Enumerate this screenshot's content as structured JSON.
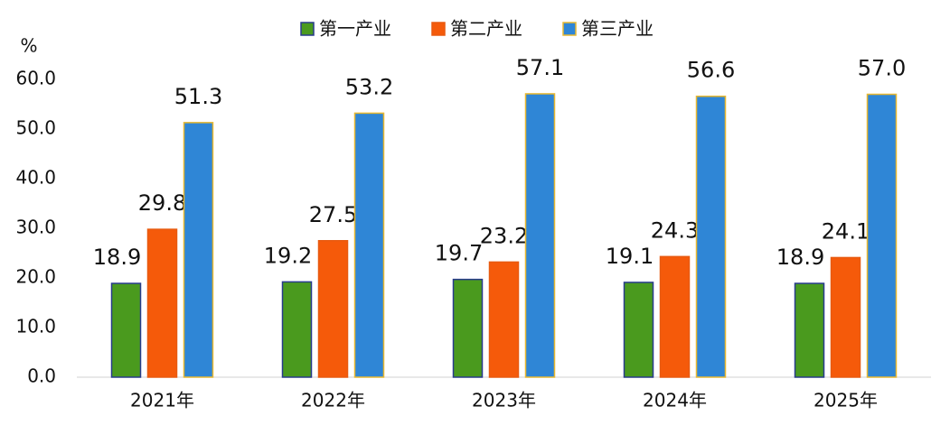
{
  "chart_data": {
    "type": "bar",
    "y_label": "%",
    "categories": [
      "2021年",
      "2022年",
      "2023年",
      "2024年",
      "2025年"
    ],
    "series": [
      {
        "name": "第一产业",
        "color": "#4a9a1e",
        "values": [
          18.9,
          19.2,
          19.7,
          19.1,
          18.9
        ],
        "value_labels": [
          "18.9",
          "19.2",
          "19.7",
          "19.1",
          "18.9"
        ]
      },
      {
        "name": "第二产业",
        "color": "#f55a0a",
        "values": [
          29.8,
          27.5,
          23.2,
          24.3,
          24.1
        ],
        "value_labels": [
          "29.8",
          "27.5",
          "23.2",
          "24.3",
          "24.1"
        ]
      },
      {
        "name": "第三产业",
        "color": "#2f86d6",
        "values": [
          51.3,
          53.2,
          57.1,
          56.6,
          57.0
        ],
        "value_labels": [
          "51.3",
          "53.2",
          "57.1",
          "56.6",
          "57.0"
        ]
      }
    ],
    "ylim": [
      0,
      60
    ],
    "yticks": [
      {
        "value": 0,
        "label": "0.0"
      },
      {
        "value": 10,
        "label": "10.0"
      },
      {
        "value": 20,
        "label": "20.0"
      },
      {
        "value": 30,
        "label": "30.0"
      },
      {
        "value": 40,
        "label": "40.0"
      },
      {
        "value": 50,
        "label": "50.0"
      },
      {
        "value": 60,
        "label": "60.0"
      }
    ],
    "legend": "top"
  }
}
